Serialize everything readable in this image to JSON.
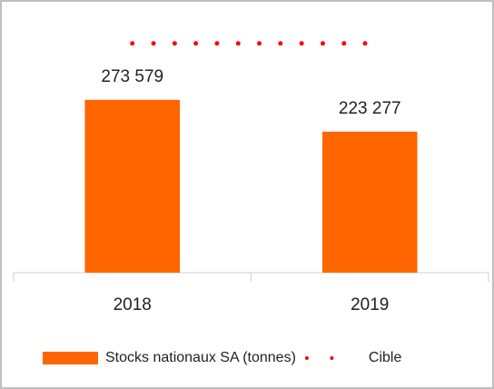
{
  "chart_data": {
    "type": "bar",
    "categories": [
      "2018",
      "2019"
    ],
    "series": [
      {
        "name": "Stocks nationaux SA (tonnes)",
        "type": "bar",
        "color": "#ff6600",
        "values": [
          273579,
          223277
        ],
        "value_labels": [
          "273 579",
          "223 277"
        ]
      },
      {
        "name": "Cible",
        "type": "line",
        "color": "#ff0000",
        "values": [
          363000,
          363000
        ]
      }
    ],
    "ylim": [
      0,
      400000
    ],
    "legend": "bottom"
  }
}
